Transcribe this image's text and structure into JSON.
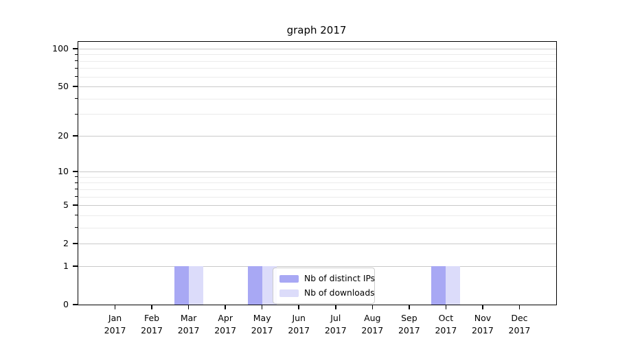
{
  "chart_data": {
    "type": "bar",
    "title": "graph 2017",
    "year_label": "2017",
    "months": [
      "Jan",
      "Feb",
      "Mar",
      "Apr",
      "May",
      "Jun",
      "Jul",
      "Aug",
      "Sep",
      "Oct",
      "Nov",
      "Dec"
    ],
    "categories": [
      "Jan 2017",
      "Feb 2017",
      "Mar 2017",
      "Apr 2017",
      "May 2017",
      "Jun 2017",
      "Jul 2017",
      "Aug 2017",
      "Sep 2017",
      "Oct 2017",
      "Nov 2017",
      "Dec 2017"
    ],
    "series": [
      {
        "name": "Nb of distinct IPs",
        "color": "#a8a8f4",
        "values": [
          0,
          0,
          1,
          0,
          1,
          0,
          0,
          0,
          0,
          1,
          0,
          0
        ]
      },
      {
        "name": "Nb of downloads",
        "color": "#dcdcfa",
        "values": [
          0,
          0,
          1,
          0,
          1,
          0,
          0,
          0,
          0,
          1,
          0,
          0
        ]
      }
    ],
    "yscale": "log1p",
    "ylim": [
      0,
      113
    ],
    "yticks": [
      0,
      1,
      2,
      5,
      10,
      20,
      50,
      100
    ],
    "minor_yticks": [
      3,
      4,
      6,
      7,
      8,
      9,
      30,
      40,
      60,
      70,
      80,
      90
    ],
    "xlabel": "",
    "ylabel": "",
    "grid": true,
    "legend_position": "lower-center",
    "colors": {
      "axis": "#000000",
      "grid_major": "#c9c9c9",
      "grid_minor": "#ebebeb",
      "background": "#ffffff",
      "legend_border": "#cccccc"
    }
  }
}
